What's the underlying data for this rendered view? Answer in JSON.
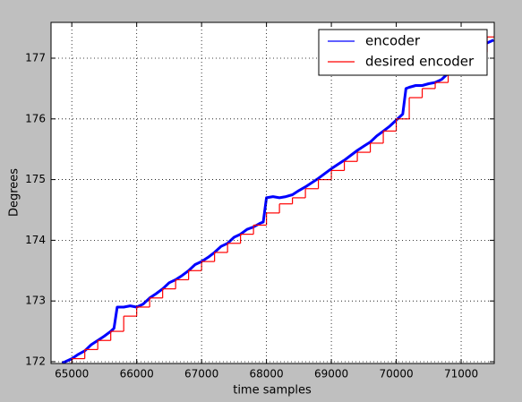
{
  "chart_data": {
    "type": "line",
    "xlabel": "time samples",
    "ylabel": "Degrees",
    "xlim": [
      64680,
      71510
    ],
    "ylim": [
      171.97,
      177.59
    ],
    "xticks": [
      65000,
      66000,
      67000,
      68000,
      69000,
      70000,
      71000
    ],
    "yticks": [
      172,
      173,
      174,
      175,
      176,
      177
    ],
    "grid": true,
    "legend": "upper right",
    "series": [
      {
        "name": "encoder",
        "color": "#0000ff",
        "step": false,
        "x": [
          64850,
          64900,
          65000,
          65100,
          65200,
          65300,
          65400,
          65500,
          65600,
          65650,
          65700,
          65800,
          65900,
          66000,
          66100,
          66200,
          66300,
          66400,
          66500,
          66600,
          66700,
          66800,
          66900,
          67000,
          67100,
          67200,
          67300,
          67400,
          67500,
          67600,
          67700,
          67800,
          67900,
          67950,
          68000,
          68100,
          68200,
          68300,
          68400,
          68500,
          68600,
          68700,
          68800,
          68900,
          69000,
          69100,
          69200,
          69300,
          69400,
          69500,
          69600,
          69700,
          69800,
          69900,
          70000,
          70100,
          70150,
          70200,
          70300,
          70400,
          70500,
          70600,
          70700,
          70800,
          70900,
          71000,
          71100,
          71200,
          71300,
          71400,
          71500
        ],
        "values": [
          171.98,
          172.0,
          172.05,
          172.12,
          172.18,
          172.28,
          172.35,
          172.42,
          172.5,
          172.55,
          172.9,
          172.9,
          172.92,
          172.9,
          172.95,
          173.05,
          173.12,
          173.2,
          173.3,
          173.35,
          173.42,
          173.5,
          173.6,
          173.65,
          173.72,
          173.8,
          173.9,
          173.95,
          174.05,
          174.1,
          174.18,
          174.22,
          174.28,
          174.3,
          174.7,
          174.72,
          174.7,
          174.72,
          174.75,
          174.82,
          174.88,
          174.95,
          175.02,
          175.1,
          175.18,
          175.25,
          175.32,
          175.4,
          175.48,
          175.55,
          175.62,
          175.72,
          175.8,
          175.88,
          175.98,
          176.08,
          176.5,
          176.52,
          176.55,
          176.55,
          176.58,
          176.6,
          176.65,
          176.75,
          176.85,
          176.95,
          177.02,
          177.1,
          177.2,
          177.25,
          177.3
        ]
      },
      {
        "name": "desired encoder",
        "color": "#ff0000",
        "step": true,
        "x": [
          64800,
          65000,
          65200,
          65400,
          65600,
          65800,
          66000,
          66200,
          66400,
          66600,
          66800,
          67000,
          67200,
          67400,
          67600,
          67800,
          68000,
          68200,
          68400,
          68600,
          68800,
          69000,
          69200,
          69400,
          69600,
          69800,
          70000,
          70200,
          70400,
          70600,
          70800,
          71000,
          71200,
          71400
        ],
        "values": [
          171.95,
          172.05,
          172.2,
          172.35,
          172.5,
          172.75,
          172.9,
          173.05,
          173.2,
          173.35,
          173.5,
          173.65,
          173.8,
          173.95,
          174.1,
          174.25,
          174.45,
          174.6,
          174.7,
          174.85,
          175.0,
          175.15,
          175.3,
          175.45,
          175.6,
          175.8,
          176.0,
          176.35,
          176.5,
          176.6,
          176.75,
          176.9,
          177.1,
          177.35
        ]
      }
    ]
  }
}
